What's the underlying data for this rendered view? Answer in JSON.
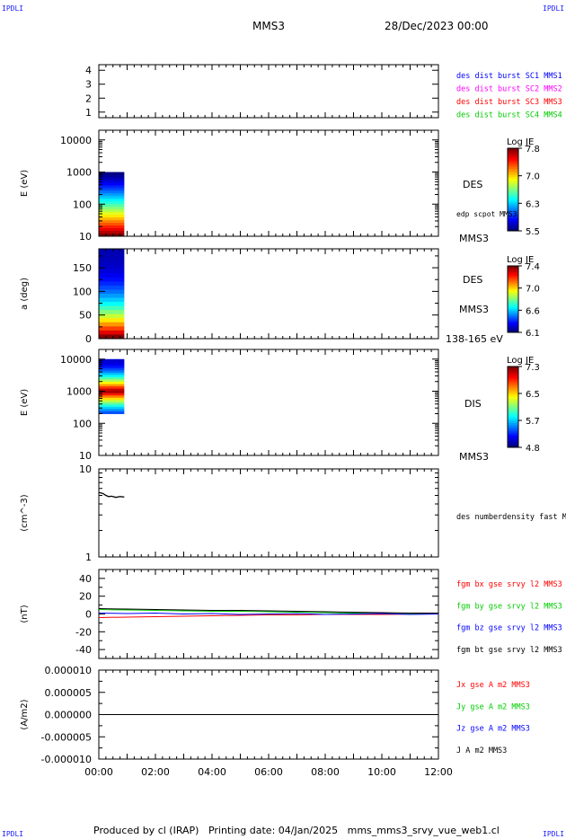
{
  "header": {
    "corner_tl": "IPDLI",
    "corner_tr": "IPDLI",
    "corner_bl": "IPDLI",
    "corner_br": "IPDLI",
    "title": "MMS3",
    "date": "28/Dec/2023 00:00"
  },
  "footer": {
    "text": "Produced by cl (IRAP)   Printing date: 04/Jan/2025   mms_mms3_srvy_vue_web1.cl"
  },
  "chart_data": [
    {
      "type": "line",
      "panel": "spacecraft-availability",
      "ylabel": "",
      "yticks": [
        "1",
        "2",
        "3",
        "4"
      ],
      "ylim": [
        0.6,
        4.4
      ],
      "legend": [
        {
          "text": "des dist burst SC1 MMS1",
          "color": "#0000ff"
        },
        {
          "text": "des dist burst SC2 MMS2",
          "color": "#ff00ff"
        },
        {
          "text": "des dist burst SC3 MMS3",
          "color": "#ff0000"
        },
        {
          "text": "des dist burst SC4 MMS4",
          "color": "#00cc00"
        }
      ]
    },
    {
      "type": "heatmap",
      "panel": "des-energy-spectrogram",
      "ylabel": "E (eV)",
      "yscale": "log",
      "ylim": [
        10,
        20000
      ],
      "yticks": [
        "10",
        "100",
        "1000",
        "10000"
      ],
      "x_range_hours": [
        0,
        0.9
      ],
      "e_max": 1000,
      "colorbar": {
        "title": "Log JE",
        "ticks": [
          "7.8",
          "7.0",
          "6.3",
          "5.5"
        ]
      },
      "labels": [
        "DES",
        "edp scpot MMS3",
        "MMS3"
      ]
    },
    {
      "type": "heatmap",
      "panel": "des-pitch-angle",
      "ylabel": "a (deg)",
      "ylim": [
        0,
        190
      ],
      "yticks": [
        "0",
        "50",
        "100",
        "150"
      ],
      "x_range_hours": [
        0,
        0.9
      ],
      "colorbar": {
        "title": "Log JE",
        "ticks": [
          "7.4",
          "7.0",
          "6.6",
          "6.1"
        ]
      },
      "labels": [
        "DES",
        "MMS3",
        "138-165 eV"
      ]
    },
    {
      "type": "heatmap",
      "panel": "dis-energy-spectrogram",
      "ylabel": "E (eV)",
      "yscale": "log",
      "ylim": [
        10,
        20000
      ],
      "yticks": [
        "10",
        "100",
        "1000",
        "10000"
      ],
      "x_range_hours": [
        0,
        0.9
      ],
      "e_range": [
        200,
        10000
      ],
      "colorbar": {
        "title": "Log JE",
        "ticks": [
          "7.3",
          "6.5",
          "5.7",
          "4.8"
        ]
      },
      "labels": [
        "DIS",
        "MMS3"
      ]
    },
    {
      "type": "line",
      "panel": "density",
      "ylabel": "(cm^-3)",
      "yscale": "log",
      "ylim": [
        1,
        10
      ],
      "yticks": [
        "1",
        "10"
      ],
      "series": [
        {
          "name": "des numberdensity fast M",
          "color": "#000000",
          "x": [
            0,
            0.1,
            0.15,
            0.25,
            0.35,
            0.45,
            0.6,
            0.75,
            0.9
          ],
          "y": [
            5.4,
            5.3,
            5.25,
            5.0,
            4.85,
            4.9,
            4.75,
            4.85,
            4.8
          ]
        }
      ]
    },
    {
      "type": "line",
      "panel": "magnetic-field",
      "ylabel": "(nT)",
      "ylim": [
        -50,
        50
      ],
      "yticks": [
        "-40",
        "-20",
        "0",
        "20",
        "40"
      ],
      "series": [
        {
          "name": "fgm bx gse srvy l2 MMS3",
          "color": "#ff0000",
          "x": [
            0,
            1,
            2,
            3,
            4,
            5,
            6,
            7,
            8,
            9,
            10,
            11,
            12
          ],
          "y": [
            -4,
            -3.5,
            -3,
            -2.5,
            -2,
            -1.5,
            -1,
            -1,
            -0.5,
            -0.5,
            -0.5,
            -0.2,
            0
          ]
        },
        {
          "name": "fgm by gse srvy l2 MMS3",
          "color": "#00cc00",
          "x": [
            0,
            1,
            2,
            3,
            4,
            5,
            6,
            7,
            8,
            9,
            10,
            11,
            12
          ],
          "y": [
            5,
            4.5,
            4,
            3.5,
            3,
            3,
            2.5,
            2,
            1.5,
            1,
            0.5,
            0,
            0
          ]
        },
        {
          "name": "fgm bz gse srvy l2 MMS3",
          "color": "#0000ff",
          "x": [
            0,
            1,
            2,
            3,
            4,
            5,
            6,
            7,
            8,
            9,
            10,
            11,
            12
          ],
          "y": [
            1,
            0.5,
            1,
            0,
            0.5,
            -0.5,
            0,
            0.5,
            -0.5,
            0,
            0.5,
            -0.5,
            0
          ]
        },
        {
          "name": "fgm bt gse srvy l2 MMS3",
          "color": "#000000",
          "x": [
            0,
            1,
            2,
            3,
            4,
            5,
            6,
            7,
            8,
            9,
            10,
            11,
            12
          ],
          "y": [
            6,
            5.5,
            5,
            4.5,
            4,
            4,
            3.5,
            3,
            2.5,
            2,
            1.5,
            1,
            1
          ]
        }
      ]
    },
    {
      "type": "line",
      "panel": "current-density",
      "ylabel": "(A/m2)",
      "ylim": [
        -1e-05,
        1e-05
      ],
      "yticks": [
        "-0.000010",
        "-0.000005",
        "0.000000",
        "0.000005",
        "0.000010"
      ],
      "xticks": [
        "00:00",
        "02:00",
        "04:00",
        "06:00",
        "08:00",
        "10:00",
        "12:00"
      ],
      "series": [
        {
          "name": "Jx gse A m2 MMS3",
          "color": "#ff0000",
          "x": [
            0,
            12
          ],
          "y": [
            0,
            0
          ]
        },
        {
          "name": "Jy gse A m2 MMS3",
          "color": "#00cc00",
          "x": [
            0,
            12
          ],
          "y": [
            0,
            0
          ]
        },
        {
          "name": "Jz gse A m2 MMS3",
          "color": "#0000ff",
          "x": [
            0,
            12
          ],
          "y": [
            0,
            0
          ]
        },
        {
          "name": "J A m2 MMS3",
          "color": "#000000",
          "x": [
            0,
            12
          ],
          "y": [
            0,
            0
          ]
        }
      ]
    }
  ]
}
